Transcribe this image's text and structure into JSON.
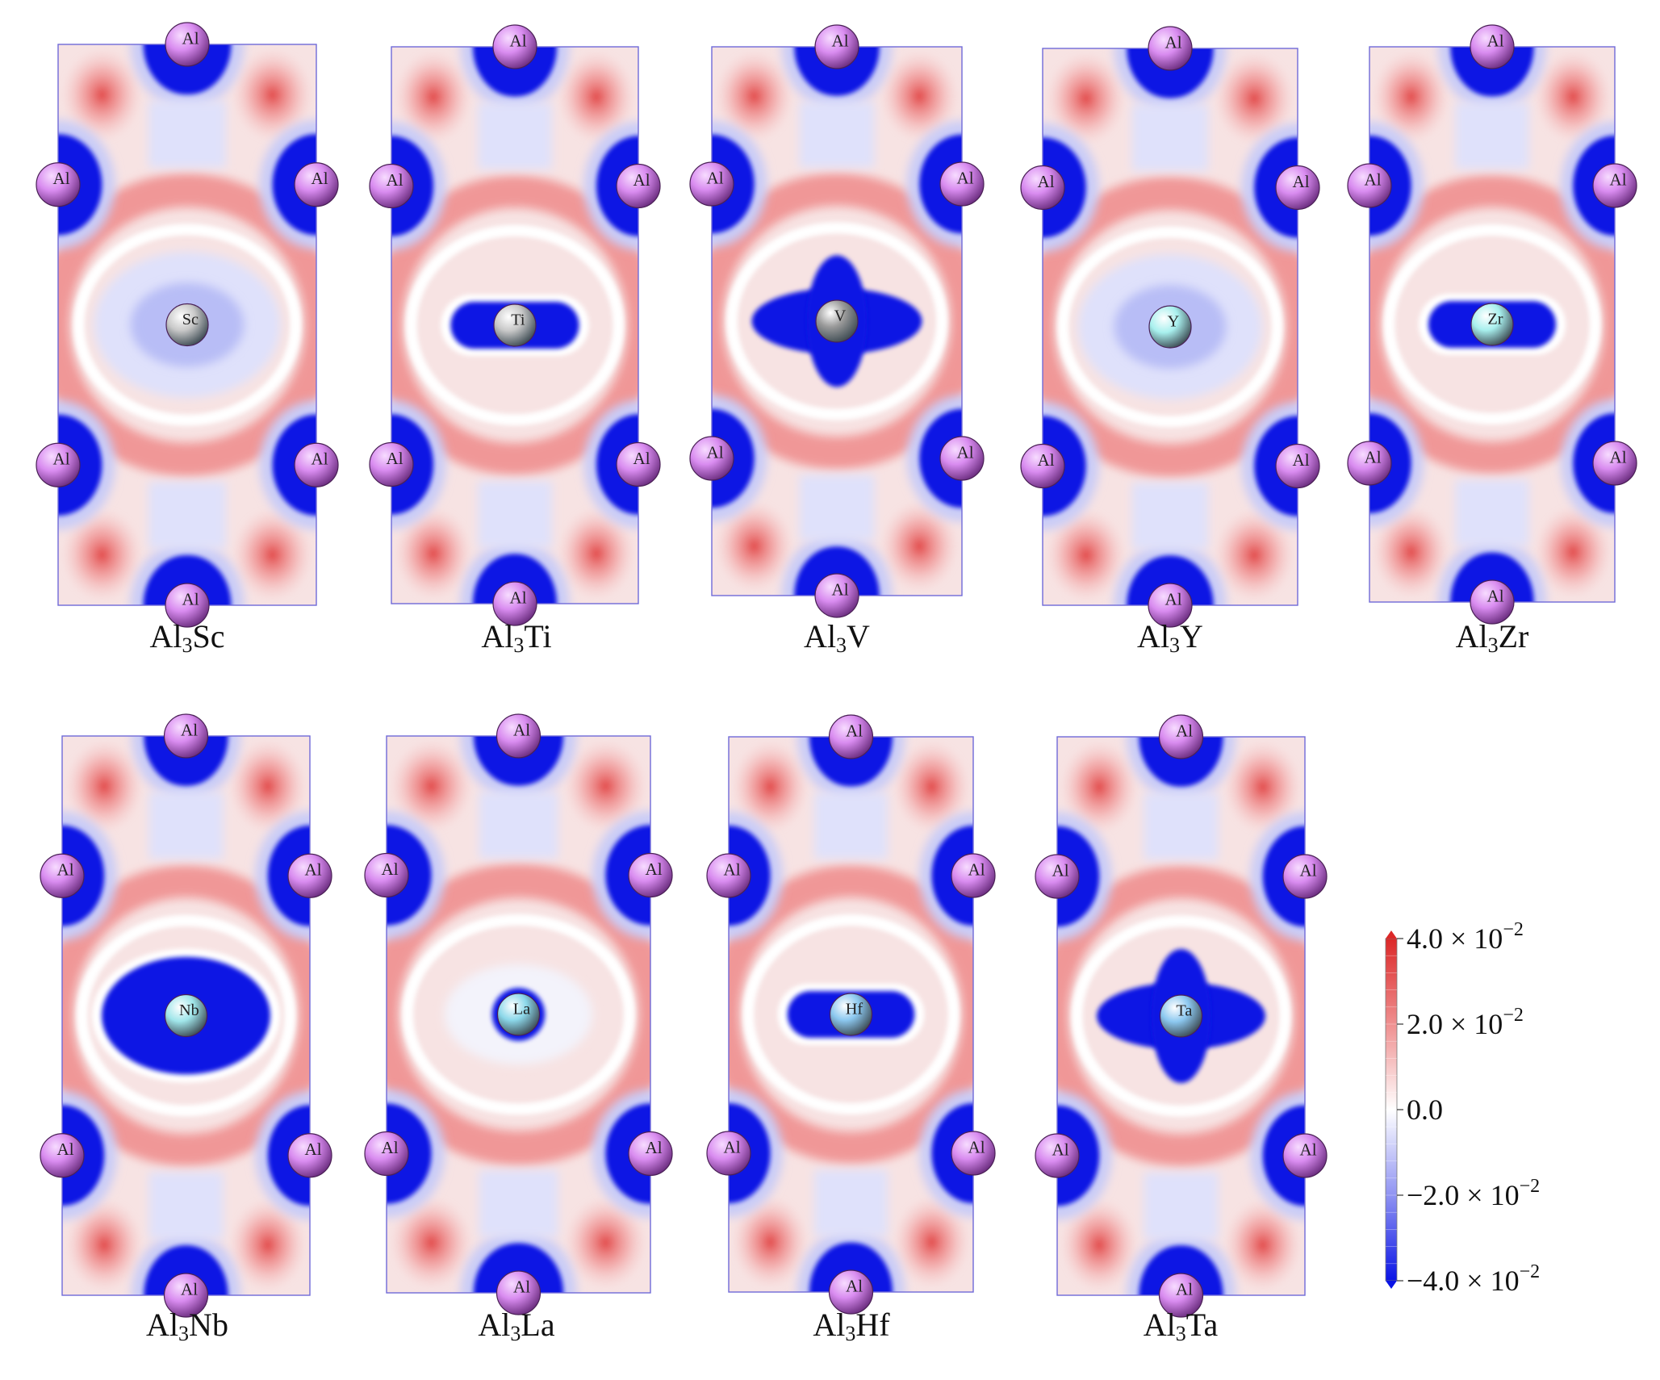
{
  "figure": {
    "panels": [
      {
        "id": "sc",
        "prefix": "Al",
        "sub": "3",
        "element": "Sc",
        "center_label": "Sc",
        "center_color": "#c8c8c8",
        "center_shape": "diamond-ring"
      },
      {
        "id": "ti",
        "prefix": "Al",
        "sub": "3",
        "element": "Ti",
        "center_label": "Ti",
        "center_color": "#c8c8c8",
        "center_shape": "horizontal-capsule"
      },
      {
        "id": "v",
        "prefix": "Al",
        "sub": "3",
        "element": "V",
        "center_label": "V",
        "center_color": "#9a9a9a",
        "center_shape": "cross"
      },
      {
        "id": "y",
        "prefix": "Al",
        "sub": "3",
        "element": "Y",
        "center_label": "Y",
        "center_color": "#a8f0ee",
        "center_shape": "diamond-ring"
      },
      {
        "id": "zr",
        "prefix": "Al",
        "sub": "3",
        "element": "Zr",
        "center_label": "Zr",
        "center_color": "#a8f0ee",
        "center_shape": "horizontal-capsule"
      },
      {
        "id": "nb",
        "prefix": "Al",
        "sub": "3",
        "element": "Nb",
        "center_label": "Nb",
        "center_color": "#a0e6ea",
        "center_shape": "diamond-solid"
      },
      {
        "id": "la",
        "prefix": "Al",
        "sub": "3",
        "element": "La",
        "center_label": "La",
        "center_color": "#8cd8ea",
        "center_shape": "small-ring"
      },
      {
        "id": "hf",
        "prefix": "Al",
        "sub": "3",
        "element": "Hf",
        "center_label": "Hf",
        "center_color": "#8cc8f0",
        "center_shape": "horizontal-capsule"
      },
      {
        "id": "ta",
        "prefix": "Al",
        "sub": "3",
        "element": "Ta",
        "center_label": "Ta",
        "center_color": "#8cc8f0",
        "center_shape": "cross"
      }
    ],
    "corner_atom_label": "Al",
    "corner_atom_color": "#d98cf0"
  },
  "colorbar": {
    "ticks": [
      {
        "label": "4.0 × 10",
        "exp": "−2",
        "value": 0.04
      },
      {
        "label": "2.0 × 10",
        "exp": "−2",
        "value": 0.02
      },
      {
        "label": "0.0",
        "exp": "",
        "value": 0.0
      },
      {
        "label": "−2.0 × 10",
        "exp": "−2",
        "value": -0.02
      },
      {
        "label": "−4.0 × 10",
        "exp": "−2",
        "value": -0.04
      }
    ],
    "range": [
      -0.04,
      0.04
    ],
    "colors": {
      "max": "#dc2828",
      "zero": "#ffffff",
      "min": "#0a14e6"
    }
  }
}
